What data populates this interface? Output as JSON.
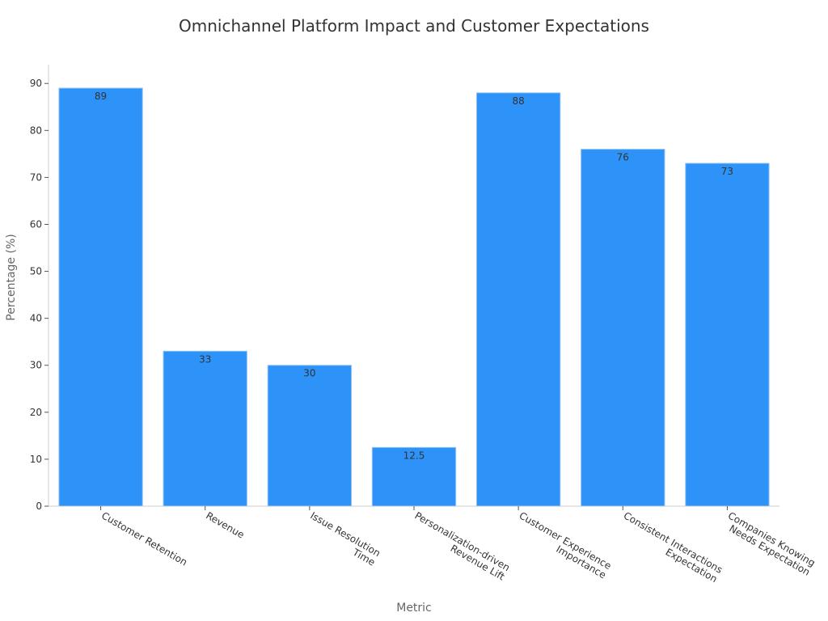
{
  "chart_data": {
    "type": "bar",
    "title": "Omnichannel Platform Impact and Customer Expectations",
    "xlabel": "Metric",
    "ylabel": "Percentage (%)",
    "categories": [
      [
        "Customer Retention"
      ],
      [
        "Revenue"
      ],
      [
        "Issue Resolution",
        "Time"
      ],
      [
        "Personalization-driven",
        "Revenue Lift"
      ],
      [
        "Customer Experience",
        "Importance"
      ],
      [
        "Consistent Interactions",
        "Expectation"
      ],
      [
        "Companies Knowing",
        "Needs Expectation"
      ]
    ],
    "values": [
      89,
      33,
      30,
      12.5,
      88,
      76,
      73
    ],
    "value_labels": [
      "89",
      "33",
      "30",
      "12.5",
      "88",
      "76",
      "73"
    ],
    "ylim": [
      0,
      94
    ],
    "yticks": [
      0,
      10,
      20,
      30,
      40,
      50,
      60,
      70,
      80,
      90
    ],
    "grid": false,
    "bar_color": "#2E93F8"
  }
}
